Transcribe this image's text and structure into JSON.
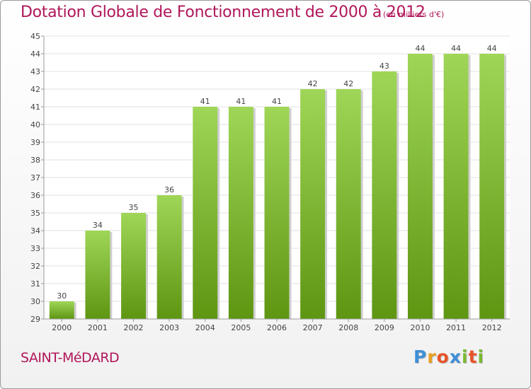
{
  "header": {
    "title": "Dotation Globale de Fonctionnement de 2000 à 2012",
    "subtitle": "(en milliers d'€)"
  },
  "footer": {
    "commune": "SAINT-MéDARD",
    "logo_letters": [
      "P",
      "r",
      "o",
      "x",
      "i",
      "t",
      "i"
    ]
  },
  "colors": {
    "title": "#b0175a",
    "bar_light": "#9fd657",
    "bar_dark": "#5e9612",
    "logo": [
      "#3f8fd8",
      "#e8a020",
      "#e8542a",
      "#3f8fd8",
      "#7bb832",
      "#e8542a",
      "#7bb832"
    ]
  },
  "chart_data": {
    "type": "bar",
    "categories": [
      "2000",
      "2001",
      "2002",
      "2003",
      "2004",
      "2005",
      "2006",
      "2007",
      "2008",
      "2009",
      "2010",
      "2011",
      "2012"
    ],
    "values": [
      30,
      34,
      35,
      36,
      41,
      41,
      41,
      42,
      42,
      43,
      44,
      44,
      44
    ],
    "data_labels": [
      "30",
      "34",
      "35",
      "36",
      "41",
      "41",
      "41",
      "42",
      "42",
      "43",
      "44",
      "44",
      "44"
    ],
    "ylim": [
      29,
      45
    ],
    "yticks": [
      29,
      30,
      31,
      32,
      33,
      34,
      35,
      36,
      37,
      38,
      39,
      40,
      41,
      42,
      43,
      44,
      45
    ],
    "grid": true
  }
}
